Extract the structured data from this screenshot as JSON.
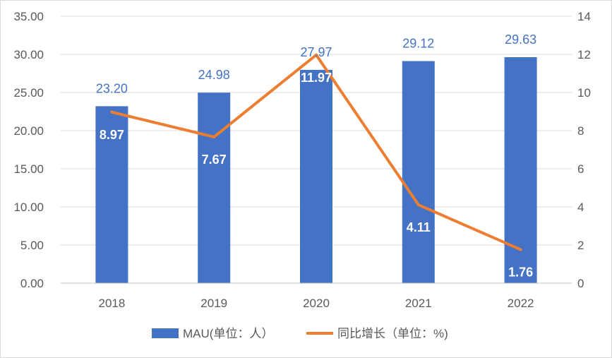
{
  "chart_data": {
    "type": "bar+line",
    "categories": [
      "2018",
      "2019",
      "2020",
      "2021",
      "2022"
    ],
    "series": [
      {
        "name": "MAU(单位：人）",
        "type": "bar",
        "axis": "left",
        "color": "#4472C4",
        "values": [
          23.2,
          24.98,
          27.97,
          29.12,
          29.63
        ],
        "labels": [
          "23.20",
          "24.98",
          "27.97",
          "29.12",
          "29.63"
        ]
      },
      {
        "name": "同比增长（单位：%)",
        "type": "line",
        "axis": "right",
        "color": "#ED7D31",
        "values": [
          8.97,
          7.67,
          11.97,
          4.11,
          1.76
        ],
        "labels": [
          "8.97",
          "7.67",
          "11.97",
          "4.11",
          "1.76"
        ]
      }
    ],
    "ylim_left": [
      0,
      35
    ],
    "ylim_right": [
      0,
      14
    ],
    "yticks_left": [
      "0.00",
      "5.00",
      "10.00",
      "15.00",
      "20.00",
      "25.00",
      "30.00",
      "35.00"
    ],
    "yticks_right": [
      "0",
      "2",
      "4",
      "6",
      "8",
      "10",
      "12",
      "14"
    ],
    "grid": true,
    "legend_position": "bottom"
  }
}
